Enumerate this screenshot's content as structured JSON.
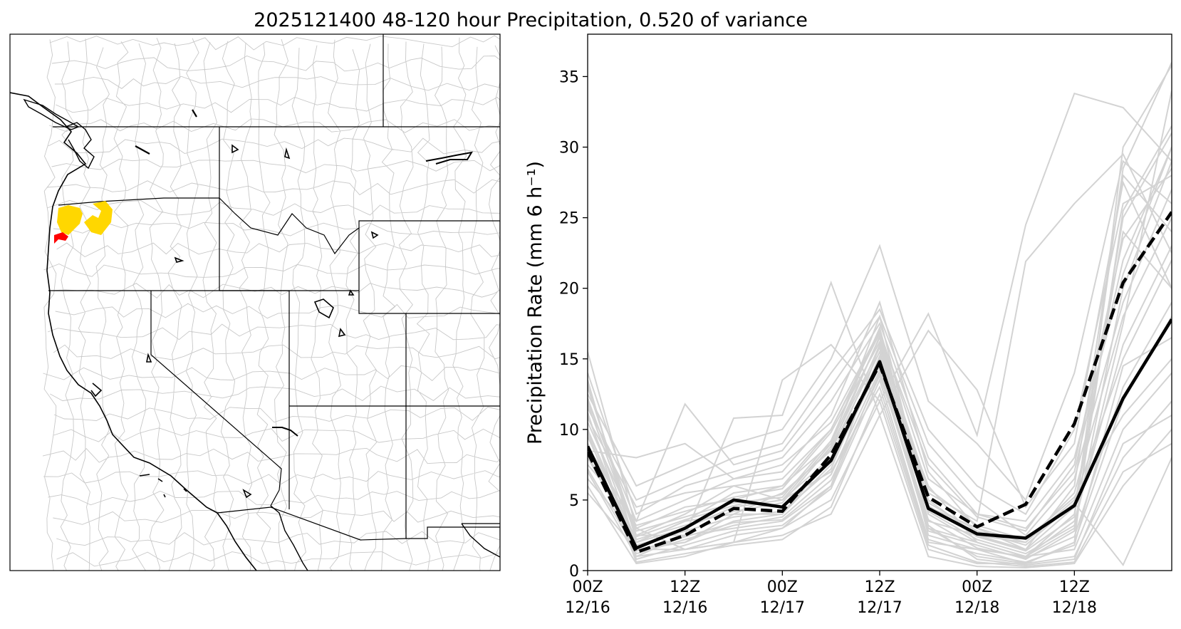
{
  "figure": {
    "title": "2025121400 48-120 hour Precipitation, 0.520 of variance"
  },
  "map": {
    "highlight_colors": {
      "primary": "#ffd700",
      "secondary": "#ff0000"
    },
    "line_color": "#000000",
    "basin_color": "#c8c8c8"
  },
  "chart_data": {
    "type": "line",
    "title": "",
    "xlabel": "",
    "ylabel": "Precipitation Rate (mm 6 h⁻¹)",
    "ylim": [
      0,
      38
    ],
    "yticks": [
      0,
      5,
      10,
      15,
      20,
      25,
      30,
      35
    ],
    "x": [
      0,
      1,
      2,
      3,
      4,
      5,
      6,
      7,
      8,
      9,
      10,
      11,
      12
    ],
    "xlim": [
      0,
      12
    ],
    "xticks": [
      {
        "x": 0,
        "line1": "00Z",
        "line2": "12/16"
      },
      {
        "x": 2,
        "line1": "12Z",
        "line2": "12/16"
      },
      {
        "x": 4,
        "line1": "00Z",
        "line2": "12/17"
      },
      {
        "x": 6,
        "line1": "12Z",
        "line2": "12/17"
      },
      {
        "x": 8,
        "line1": "00Z",
        "line2": "12/18"
      },
      {
        "x": 10,
        "line1": "12Z",
        "line2": "12/18"
      }
    ],
    "grid": false,
    "legend": "none",
    "series": [
      {
        "style": "solid",
        "color": "#000000",
        "values": [
          8.8,
          1.6,
          3.0,
          5.0,
          4.5,
          7.8,
          14.8,
          4.4,
          2.6,
          2.3,
          4.6,
          12.2,
          17.8
        ]
      },
      {
        "style": "dashed",
        "color": "#000000",
        "values": [
          8.4,
          1.3,
          2.5,
          4.4,
          4.2,
          8.2,
          14.6,
          5.2,
          3.1,
          4.7,
          10.4,
          20.4,
          25.4
        ]
      }
    ],
    "ensemble_color": "#d3d3d3",
    "ensemble": [
      [
        15.5,
        3.0,
        1.5,
        2.0,
        3.0,
        6.0,
        16.0,
        2.5,
        1.5,
        0.5,
        2.0,
        30.0,
        35.8
      ],
      [
        13.0,
        2.5,
        4.0,
        6.0,
        5.0,
        9.0,
        18.0,
        4.0,
        2.0,
        1.0,
        4.0,
        25.0,
        31.0
      ],
      [
        11.0,
        2.0,
        3.5,
        5.5,
        6.0,
        10.0,
        17.0,
        3.5,
        2.5,
        1.5,
        6.0,
        28.0,
        24.0
      ],
      [
        10.0,
        1.5,
        2.0,
        4.0,
        4.0,
        8.0,
        15.0,
        6.0,
        2.0,
        1.0,
        3.0,
        20.0,
        29.0
      ],
      [
        12.0,
        3.5,
        5.0,
        6.5,
        7.0,
        11.0,
        19.0,
        7.0,
        3.0,
        2.0,
        5.0,
        15.0,
        22.0
      ],
      [
        9.0,
        1.0,
        2.5,
        3.0,
        3.5,
        6.0,
        14.0,
        3.0,
        1.0,
        0.5,
        2.0,
        12.0,
        18.0
      ],
      [
        14.0,
        4.0,
        6.0,
        7.0,
        8.0,
        12.0,
        17.5,
        8.0,
        4.0,
        3.0,
        7.0,
        22.0,
        30.0
      ],
      [
        8.0,
        2.0,
        3.0,
        4.5,
        5.0,
        7.0,
        13.0,
        2.0,
        1.5,
        1.0,
        1.5,
        10.0,
        14.0
      ],
      [
        7.0,
        1.0,
        1.5,
        2.5,
        3.0,
        5.0,
        12.0,
        1.5,
        0.5,
        0.5,
        1.0,
        8.0,
        12.0
      ],
      [
        6.0,
        0.5,
        1.0,
        2.0,
        2.5,
        4.0,
        11.0,
        1.0,
        0.3,
        0.2,
        0.5,
        6.0,
        10.0
      ],
      [
        11.5,
        5.0,
        6.5,
        8.0,
        9.0,
        14.0,
        18.5,
        10.0,
        6.0,
        4.0,
        10.0,
        26.0,
        28.0
      ],
      [
        10.5,
        3.0,
        4.5,
        5.0,
        6.0,
        9.0,
        16.5,
        5.0,
        2.5,
        2.0,
        5.5,
        18.0,
        25.0
      ],
      [
        9.5,
        2.0,
        3.5,
        4.0,
        5.5,
        8.5,
        15.5,
        4.5,
        3.0,
        1.5,
        4.5,
        24.0,
        20.0
      ],
      [
        13.5,
        1.5,
        2.0,
        3.5,
        4.0,
        7.5,
        14.5,
        3.0,
        2.0,
        1.0,
        3.5,
        16.0,
        23.0
      ],
      [
        12.5,
        6.0,
        7.5,
        9.0,
        10.0,
        15.0,
        23.0,
        12.0,
        9.0,
        5.0,
        14.0,
        29.0,
        26.0
      ],
      [
        8.5,
        8.0,
        9.0,
        6.5,
        7.5,
        10.5,
        17.0,
        6.5,
        4.0,
        3.5,
        8.0,
        21.0,
        30.0
      ],
      [
        7.5,
        3.5,
        11.8,
        7.5,
        8.5,
        13.0,
        18.0,
        9.0,
        5.0,
        2.5,
        6.5,
        19.0,
        27.0
      ],
      [
        6.5,
        2.5,
        2.5,
        10.8,
        11.0,
        20.4,
        11.0,
        17.0,
        12.8,
        4.5,
        9.0,
        27.5,
        20.0
      ],
      [
        5.5,
        1.5,
        1.5,
        2.0,
        13.5,
        16.0,
        12.0,
        18.2,
        9.6,
        24.5,
        33.8,
        32.8,
        29.0
      ],
      [
        10.0,
        2.0,
        3.0,
        4.5,
        5.0,
        8.0,
        16.0,
        5.5,
        3.5,
        21.9,
        26.0,
        29.5,
        22.5
      ],
      [
        9.0,
        1.2,
        2.2,
        3.2,
        3.8,
        6.8,
        14.2,
        2.8,
        1.8,
        0.8,
        2.8,
        25.5,
        31.5
      ],
      [
        11.2,
        0.8,
        1.8,
        2.8,
        3.2,
        5.8,
        13.5,
        2.2,
        1.2,
        0.6,
        1.8,
        14.5,
        16.5
      ],
      [
        12.2,
        2.8,
        3.8,
        4.8,
        5.2,
        9.2,
        17.2,
        4.2,
        2.2,
        1.2,
        3.2,
        17.5,
        34.0
      ],
      [
        8.2,
        1.8,
        2.8,
        3.8,
        4.2,
        7.2,
        15.2,
        3.2,
        0.8,
        0.4,
        0.8,
        9.0,
        11.0
      ],
      [
        7.2,
        1.4,
        2.4,
        3.4,
        3.6,
        6.4,
        13.8,
        3.6,
        1.6,
        0.9,
        2.4,
        13.0,
        19.0
      ],
      [
        10.8,
        4.5,
        5.5,
        6.0,
        6.5,
        10.0,
        16.8,
        7.5,
        3.8,
        2.8,
        7.5,
        23.5,
        28.5
      ],
      [
        9.8,
        0.6,
        1.2,
        1.8,
        2.2,
        4.5,
        12.5,
        1.8,
        0.6,
        0.3,
        0.6,
        7.0,
        9.0
      ],
      [
        13.2,
        2.2,
        3.2,
        4.2,
        4.8,
        8.8,
        15.8,
        4.8,
        2.8,
        1.8,
        4.8,
        0.4,
        8.0
      ],
      [
        8.8,
        3.2,
        4.2,
        5.2,
        5.8,
        9.8,
        16.2,
        5.8,
        3.2,
        2.2,
        5.2,
        11.0,
        15.0
      ],
      [
        11.8,
        2.4,
        3.6,
        4.6,
        5.4,
        8.6,
        16.6,
        4.6,
        2.4,
        1.4,
        3.8,
        28.5,
        36.0
      ]
    ]
  }
}
